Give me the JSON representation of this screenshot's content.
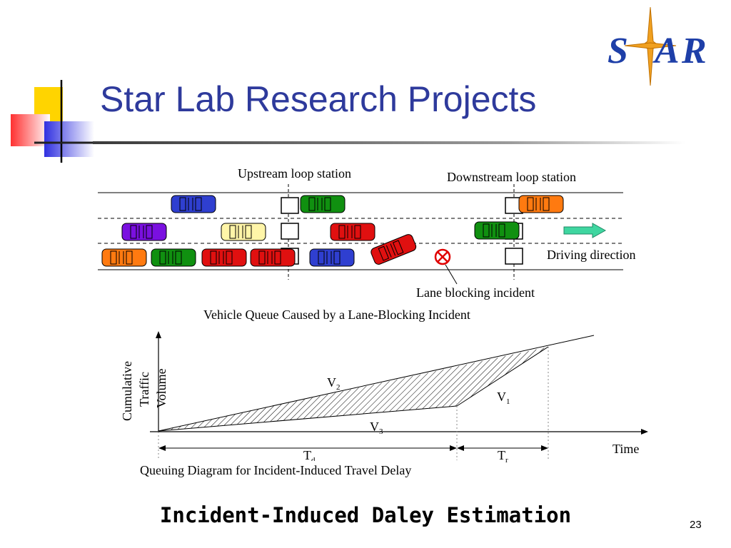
{
  "slide": {
    "title": "Star Lab Research Projects",
    "subtitle": "Incident-Induced Daley Estimation",
    "page_number": "23"
  },
  "logo": {
    "letters": [
      "S",
      "A",
      "R"
    ],
    "icon": "star-icon",
    "colors": {
      "letters": "#1e3fa8",
      "star": "#f0a020"
    }
  },
  "traffic_diagram": {
    "upstream_label": "Upstream loop station",
    "downstream_label": "Downstream loop station",
    "direction_label": "Driving direction",
    "incident_label": "Lane blocking incident",
    "caption": "Vehicle Queue Caused by a Lane-Blocking Incident"
  },
  "queue_diagram": {
    "y_label_lines": [
      "Cumulative",
      "Traffic",
      "Volume"
    ],
    "x_label": "Time",
    "v2": {
      "main": "V",
      "sub": "2"
    },
    "v1": {
      "main": "V",
      "sub": "1"
    },
    "v3": {
      "main": "V",
      "sub": "3"
    },
    "td": {
      "main": "T",
      "sub": "d"
    },
    "tr": {
      "main": "T",
      "sub": "r"
    },
    "caption": "Queuing Diagram for Incident-Induced Travel Delay"
  },
  "colors": {
    "title": "#2e3a9c",
    "car_blue": "#2f3fd0",
    "car_green": "#109010",
    "car_red": "#e01010",
    "car_orange": "#ff7a10",
    "car_purple": "#7a10e0",
    "car_yellow": "#fff5a8",
    "arrow": "#3fd6a0"
  }
}
